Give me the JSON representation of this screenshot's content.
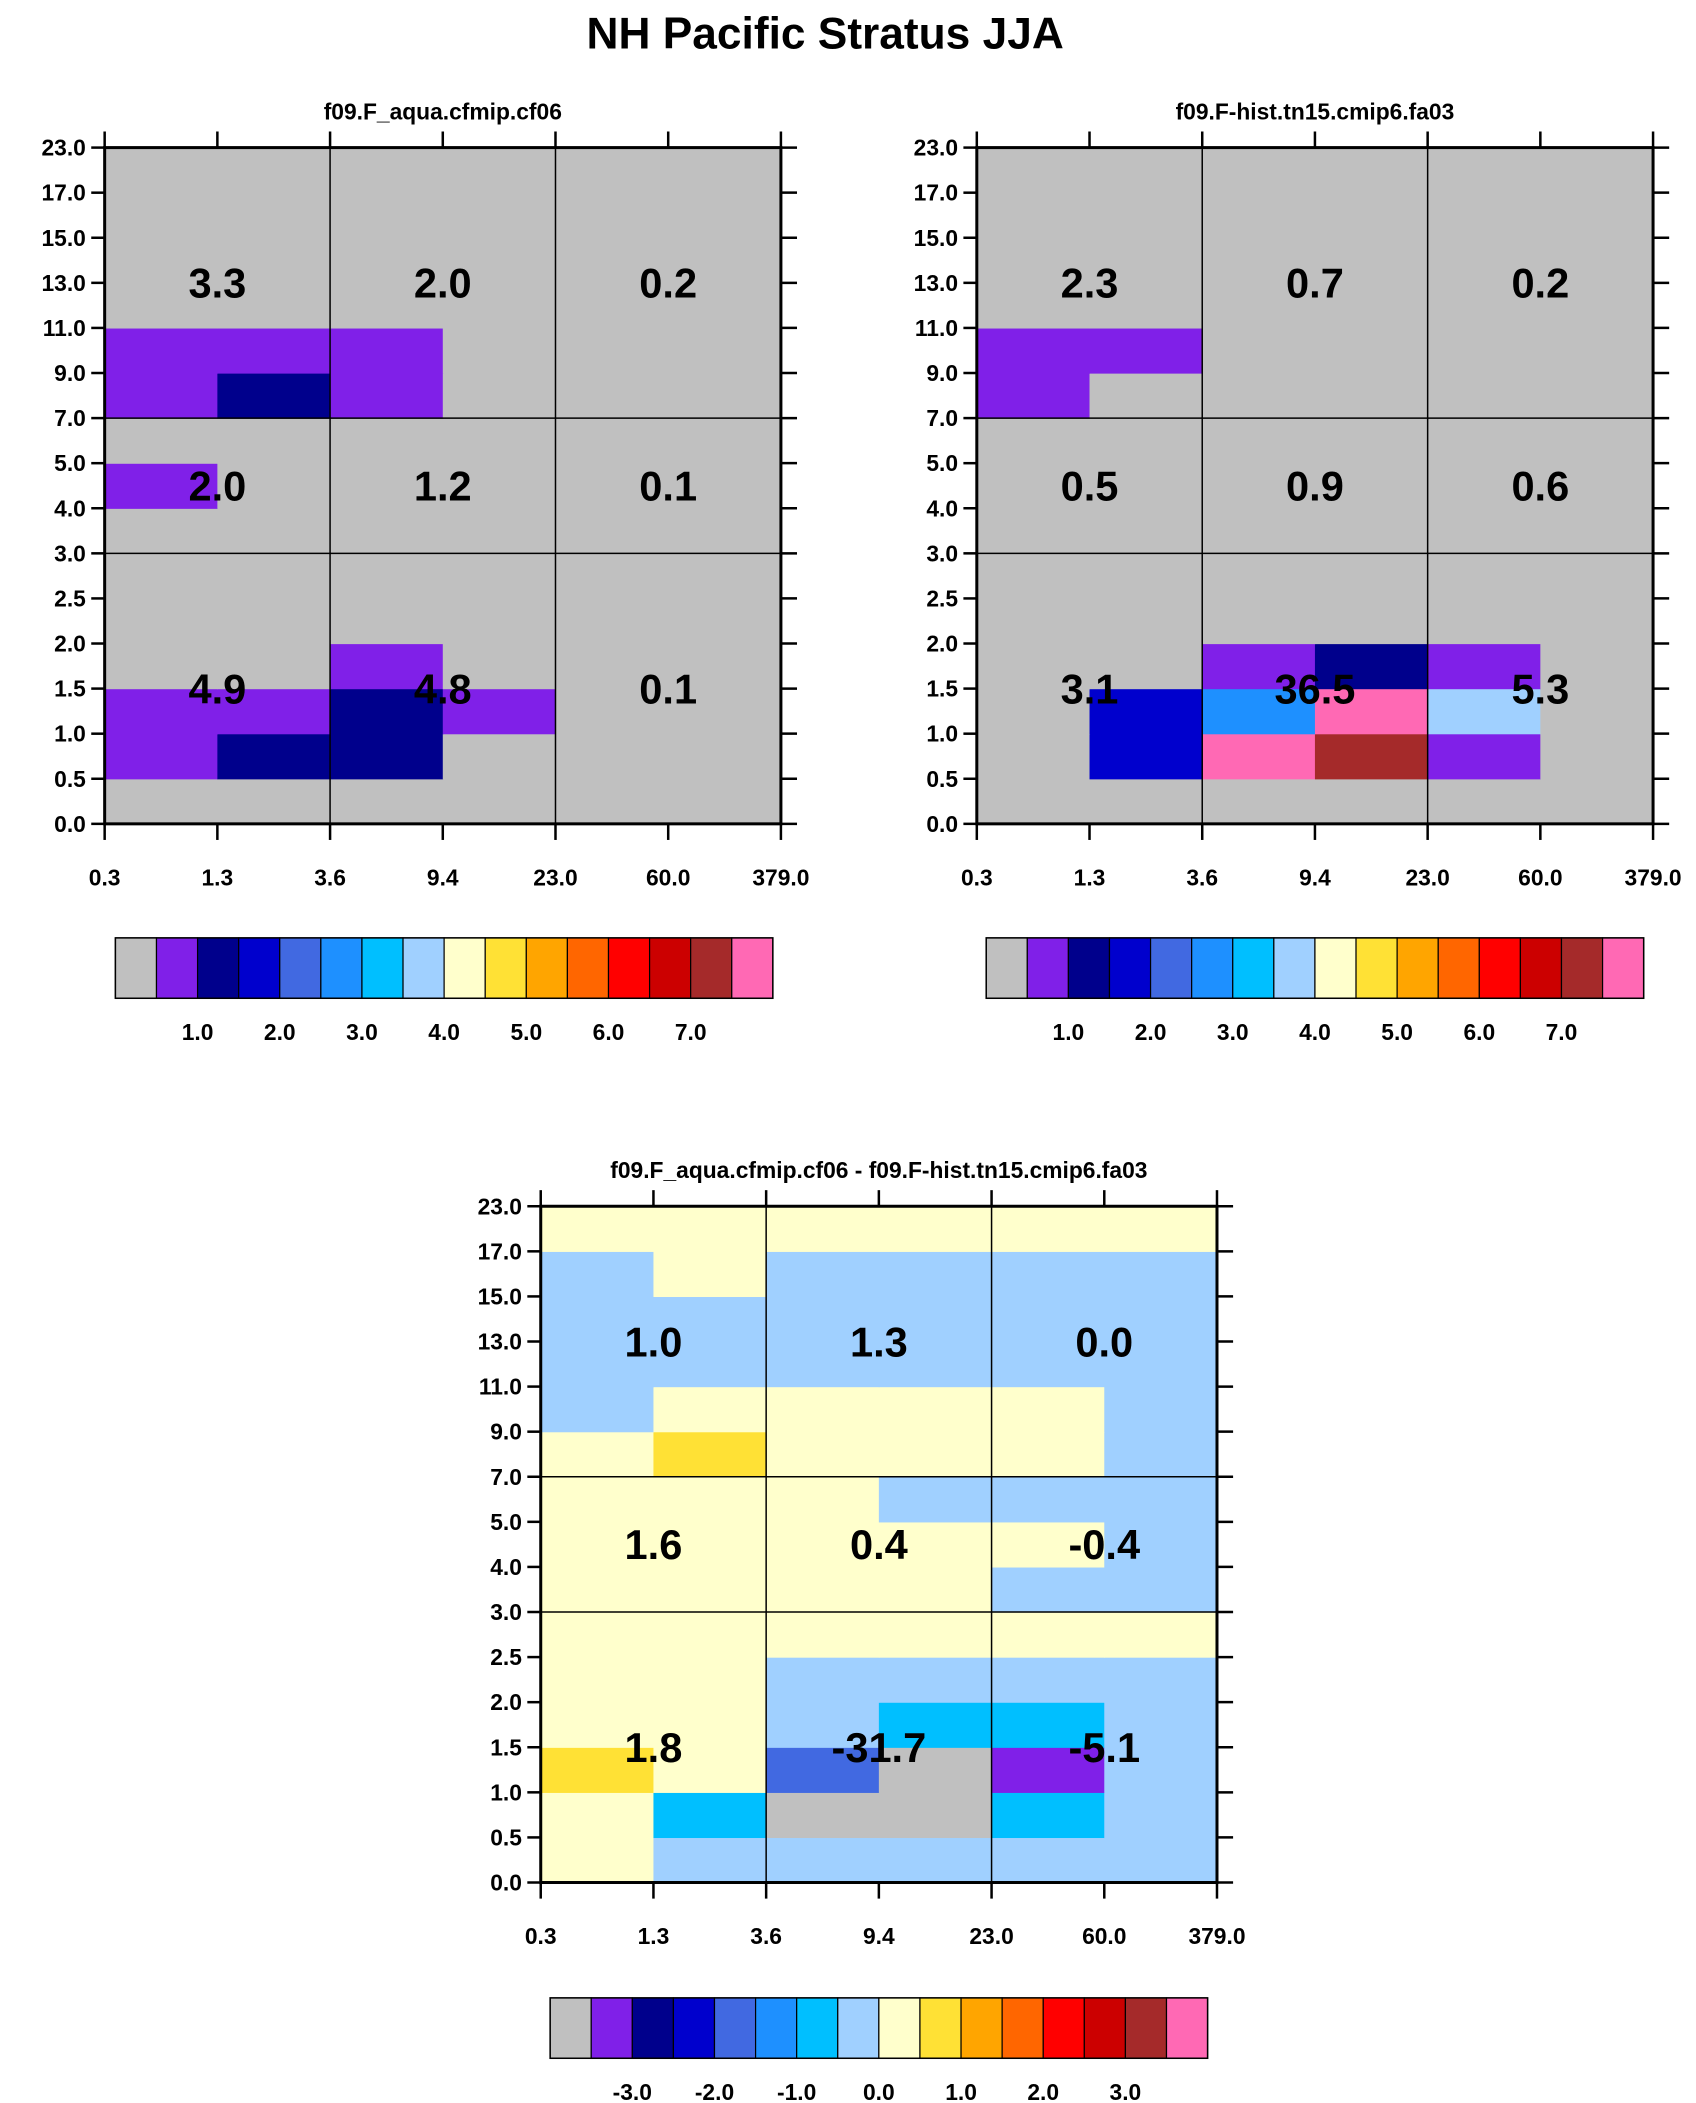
{
  "page_title": "NH Pacific Stratus JJA",
  "colors": {
    "palette": [
      "#c0c0c0",
      "#8020e8",
      "#00008c",
      "#0000cd",
      "#4169e1",
      "#1e90ff",
      "#00bfff",
      "#a0d0ff",
      "#ffffcc",
      "#ffe135",
      "#ffa500",
      "#ff6600",
      "#ff0000",
      "#cc0000",
      "#a52a2a",
      "#ff69b4"
    ]
  },
  "chart_data": [
    {
      "type": "heatmap",
      "title": "f09.F_aqua.cfmip.cf06",
      "x_tick_labels": [
        "0.3",
        "1.3",
        "3.6",
        "9.4",
        "23.0",
        "60.0",
        "379.0"
      ],
      "y_tick_labels": [
        "0.0",
        "0.5",
        "1.0",
        "1.5",
        "2.0",
        "2.5",
        "3.0",
        "4.0",
        "5.0",
        "7.0",
        "9.0",
        "11.0",
        "13.0",
        "15.0",
        "17.0",
        "23.0"
      ],
      "cell_color_index_rows_bottom_to_top": [
        [
          0,
          0,
          0,
          0,
          0,
          0
        ],
        [
          1,
          2,
          2,
          0,
          0,
          0
        ],
        [
          1,
          1,
          2,
          1,
          0,
          0
        ],
        [
          0,
          0,
          1,
          0,
          0,
          0
        ],
        [
          0,
          0,
          0,
          0,
          0,
          0
        ],
        [
          0,
          0,
          0,
          0,
          0,
          0
        ],
        [
          0,
          0,
          0,
          0,
          0,
          0
        ],
        [
          1,
          0,
          0,
          0,
          0,
          0
        ],
        [
          0,
          0,
          0,
          0,
          0,
          0
        ],
        [
          1,
          2,
          1,
          0,
          0,
          0
        ],
        [
          1,
          1,
          1,
          0,
          0,
          0
        ],
        [
          0,
          0,
          0,
          0,
          0,
          0
        ],
        [
          0,
          0,
          0,
          0,
          0,
          0
        ],
        [
          0,
          0,
          0,
          0,
          0,
          0
        ],
        [
          0,
          0,
          0,
          0,
          0,
          0
        ]
      ],
      "summary_values_rows_top_to_bottom": [
        [
          "3.3",
          "2.0",
          "0.2"
        ],
        [
          "2.0",
          "1.2",
          "0.1"
        ],
        [
          "4.9",
          "4.8",
          "0.1"
        ]
      ],
      "colorbar": {
        "labels": [
          "1.0",
          "2.0",
          "3.0",
          "4.0",
          "5.0",
          "6.0",
          "7.0"
        ]
      }
    },
    {
      "type": "heatmap",
      "title": "f09.F-hist.tn15.cmip6.fa03",
      "x_tick_labels": [
        "0.3",
        "1.3",
        "3.6",
        "9.4",
        "23.0",
        "60.0",
        "379.0"
      ],
      "y_tick_labels": [
        "0.0",
        "0.5",
        "1.0",
        "1.5",
        "2.0",
        "2.5",
        "3.0",
        "4.0",
        "5.0",
        "7.0",
        "9.0",
        "11.0",
        "13.0",
        "15.0",
        "17.0",
        "23.0"
      ],
      "cell_color_index_rows_bottom_to_top": [
        [
          0,
          0,
          0,
          0,
          0,
          0
        ],
        [
          0,
          3,
          15,
          14,
          1,
          0
        ],
        [
          0,
          3,
          5,
          15,
          7,
          0
        ],
        [
          0,
          0,
          1,
          2,
          1,
          0
        ],
        [
          0,
          0,
          0,
          0,
          0,
          0
        ],
        [
          0,
          0,
          0,
          0,
          0,
          0
        ],
        [
          0,
          0,
          0,
          0,
          0,
          0
        ],
        [
          0,
          0,
          0,
          0,
          0,
          0
        ],
        [
          0,
          0,
          0,
          0,
          0,
          0
        ],
        [
          1,
          0,
          0,
          0,
          0,
          0
        ],
        [
          1,
          1,
          0,
          0,
          0,
          0
        ],
        [
          0,
          0,
          0,
          0,
          0,
          0
        ],
        [
          0,
          0,
          0,
          0,
          0,
          0
        ],
        [
          0,
          0,
          0,
          0,
          0,
          0
        ],
        [
          0,
          0,
          0,
          0,
          0,
          0
        ]
      ],
      "summary_values_rows_top_to_bottom": [
        [
          "2.3",
          "0.7",
          "0.2"
        ],
        [
          "0.5",
          "0.9",
          "0.6"
        ],
        [
          "3.1",
          "36.5",
          "5.3"
        ]
      ],
      "colorbar": {
        "labels": [
          "1.0",
          "2.0",
          "3.0",
          "4.0",
          "5.0",
          "6.0",
          "7.0"
        ]
      }
    },
    {
      "type": "heatmap",
      "title": "f09.F_aqua.cfmip.cf06 - f09.F-hist.tn15.cmip6.fa03",
      "x_tick_labels": [
        "0.3",
        "1.3",
        "3.6",
        "9.4",
        "23.0",
        "60.0",
        "379.0"
      ],
      "y_tick_labels": [
        "0.0",
        "0.5",
        "1.0",
        "1.5",
        "2.0",
        "2.5",
        "3.0",
        "4.0",
        "5.0",
        "7.0",
        "9.0",
        "11.0",
        "13.0",
        "15.0",
        "17.0",
        "23.0"
      ],
      "cell_color_index_rows_bottom_to_top": [
        [
          8,
          7,
          7,
          7,
          7,
          7
        ],
        [
          8,
          6,
          0,
          0,
          6,
          7
        ],
        [
          9,
          8,
          4,
          0,
          1,
          7
        ],
        [
          8,
          8,
          7,
          6,
          6,
          7
        ],
        [
          8,
          8,
          7,
          7,
          7,
          7
        ],
        [
          8,
          8,
          8,
          8,
          8,
          8
        ],
        [
          8,
          8,
          8,
          8,
          7,
          7
        ],
        [
          8,
          8,
          8,
          8,
          8,
          7
        ],
        [
          8,
          8,
          8,
          7,
          7,
          7
        ],
        [
          8,
          9,
          8,
          8,
          8,
          7
        ],
        [
          7,
          8,
          8,
          8,
          8,
          7
        ],
        [
          7,
          7,
          7,
          7,
          7,
          7
        ],
        [
          7,
          7,
          7,
          7,
          7,
          7
        ],
        [
          7,
          8,
          7,
          7,
          7,
          7
        ],
        [
          8,
          8,
          8,
          8,
          8,
          8
        ]
      ],
      "summary_values_rows_top_to_bottom": [
        [
          "1.0",
          "1.3",
          "0.0"
        ],
        [
          "1.6",
          "0.4",
          "-0.4"
        ],
        [
          "1.8",
          "-31.7",
          "-5.1"
        ]
      ],
      "colorbar": {
        "labels": [
          "-3.0",
          "-2.0",
          "-1.0",
          "0.0",
          "1.0",
          "2.0",
          "3.0"
        ]
      }
    }
  ]
}
